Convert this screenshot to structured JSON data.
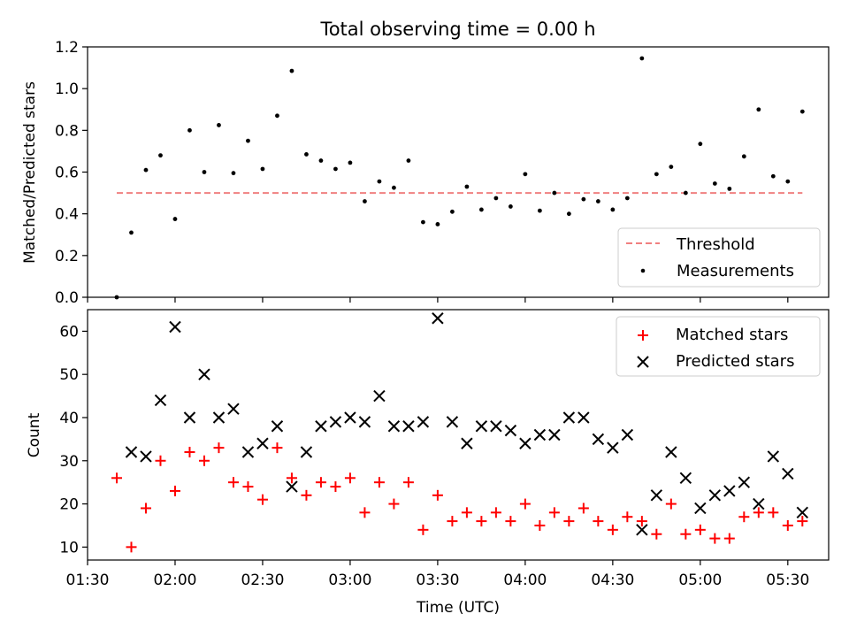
{
  "figure": {
    "title": "Total observing time = 0.00 h",
    "xlabel": "Time (UTC)"
  },
  "chart_data": [
    {
      "type": "scatter",
      "ylabel": "Matched/Predicted stars",
      "ylim": [
        0,
        1.2
      ],
      "yticks": [
        "0.0",
        "0.2",
        "0.4",
        "0.6",
        "0.8",
        "1.0",
        "1.2"
      ],
      "legend_position": "bottom-right",
      "series": [
        {
          "name": "Threshold",
          "style": "dashed-line",
          "color": "#f08080",
          "x": [
            "01:40",
            "05:35"
          ],
          "values": [
            0.5,
            0.5
          ]
        },
        {
          "name": "Measurements",
          "style": "dot",
          "color": "#000000",
          "x": [
            "01:40",
            "01:45",
            "01:50",
            "01:55",
            "02:00",
            "02:05",
            "02:10",
            "02:15",
            "02:20",
            "02:25",
            "02:30",
            "02:35",
            "02:40",
            "02:45",
            "02:50",
            "02:55",
            "03:00",
            "03:05",
            "03:10",
            "03:15",
            "03:20",
            "03:25",
            "03:30",
            "03:35",
            "03:40",
            "03:45",
            "03:50",
            "03:55",
            "04:00",
            "04:05",
            "04:10",
            "04:15",
            "04:20",
            "04:25",
            "04:30",
            "04:35",
            "04:40",
            "04:45",
            "04:50",
            "04:55",
            "05:00",
            "05:05",
            "05:10",
            "05:15",
            "05:20",
            "05:25",
            "05:30",
            "05:35"
          ],
          "values": [
            0.0,
            0.31,
            0.61,
            0.68,
            0.375,
            0.8,
            0.6,
            0.825,
            0.595,
            0.75,
            0.615,
            0.87,
            1.085,
            0.685,
            0.655,
            0.615,
            0.645,
            0.46,
            0.555,
            0.525,
            0.655,
            0.36,
            0.35,
            0.41,
            0.53,
            0.42,
            0.475,
            0.435,
            0.59,
            0.415,
            0.5,
            0.4,
            0.47,
            0.46,
            0.42,
            0.475,
            1.145,
            0.59,
            0.625,
            0.5,
            0.735,
            0.545,
            0.52,
            0.675,
            0.9,
            0.58,
            0.555,
            0.89
          ]
        }
      ]
    },
    {
      "type": "scatter",
      "ylabel": "Count",
      "ylim": [
        7,
        65
      ],
      "yticks": [
        "10",
        "20",
        "30",
        "40",
        "50",
        "60"
      ],
      "xlim": [
        "01:30",
        "05:44"
      ],
      "xticks": [
        "01:30",
        "02:00",
        "02:30",
        "03:00",
        "03:30",
        "04:00",
        "04:30",
        "05:00",
        "05:30"
      ],
      "legend_position": "top-right",
      "series": [
        {
          "name": "Matched stars",
          "style": "plus",
          "color": "#ff0000",
          "x": [
            "01:40",
            "01:45",
            "01:50",
            "01:55",
            "02:00",
            "02:05",
            "02:10",
            "02:15",
            "02:20",
            "02:25",
            "02:30",
            "02:35",
            "02:40",
            "02:45",
            "02:50",
            "02:55",
            "03:00",
            "03:05",
            "03:10",
            "03:15",
            "03:20",
            "03:25",
            "03:30",
            "03:35",
            "03:40",
            "03:45",
            "03:50",
            "03:55",
            "04:00",
            "04:05",
            "04:10",
            "04:15",
            "04:20",
            "04:25",
            "04:30",
            "04:35",
            "04:40",
            "04:45",
            "04:50",
            "04:55",
            "05:00",
            "05:05",
            "05:10",
            "05:15",
            "05:20",
            "05:25",
            "05:30",
            "05:35"
          ],
          "values": [
            26,
            10,
            19,
            30,
            23,
            32,
            30,
            33,
            25,
            24,
            21,
            33,
            26,
            22,
            25,
            24,
            26,
            18,
            25,
            20,
            25,
            14,
            22,
            16,
            18,
            16,
            18,
            16,
            20,
            15,
            18,
            16,
            19,
            16,
            14,
            17,
            16,
            13,
            20,
            13,
            14,
            12,
            12,
            17,
            18,
            18,
            15,
            16
          ]
        },
        {
          "name": "Predicted stars",
          "style": "cross",
          "color": "#000000",
          "x": [
            "01:45",
            "01:50",
            "01:55",
            "02:00",
            "02:05",
            "02:10",
            "02:15",
            "02:20",
            "02:25",
            "02:30",
            "02:35",
            "02:40",
            "02:45",
            "02:50",
            "02:55",
            "03:00",
            "03:05",
            "03:10",
            "03:15",
            "03:20",
            "03:25",
            "03:30",
            "03:35",
            "03:40",
            "03:45",
            "03:50",
            "03:55",
            "04:00",
            "04:05",
            "04:10",
            "04:15",
            "04:20",
            "04:25",
            "04:30",
            "04:35",
            "04:40",
            "04:45",
            "04:50",
            "04:55",
            "05:00",
            "05:05",
            "05:10",
            "05:15",
            "05:20",
            "05:25",
            "05:30",
            "05:35"
          ],
          "values": [
            32,
            31,
            44,
            61,
            40,
            50,
            40,
            42,
            32,
            34,
            38,
            24,
            32,
            38,
            39,
            40,
            39,
            45,
            38,
            38,
            39,
            63,
            39,
            34,
            38,
            38,
            37,
            34,
            36,
            36,
            40,
            40,
            35,
            33,
            36,
            14,
            22,
            32,
            26,
            19,
            22,
            23,
            25,
            20,
            31,
            27,
            18
          ]
        }
      ]
    }
  ]
}
